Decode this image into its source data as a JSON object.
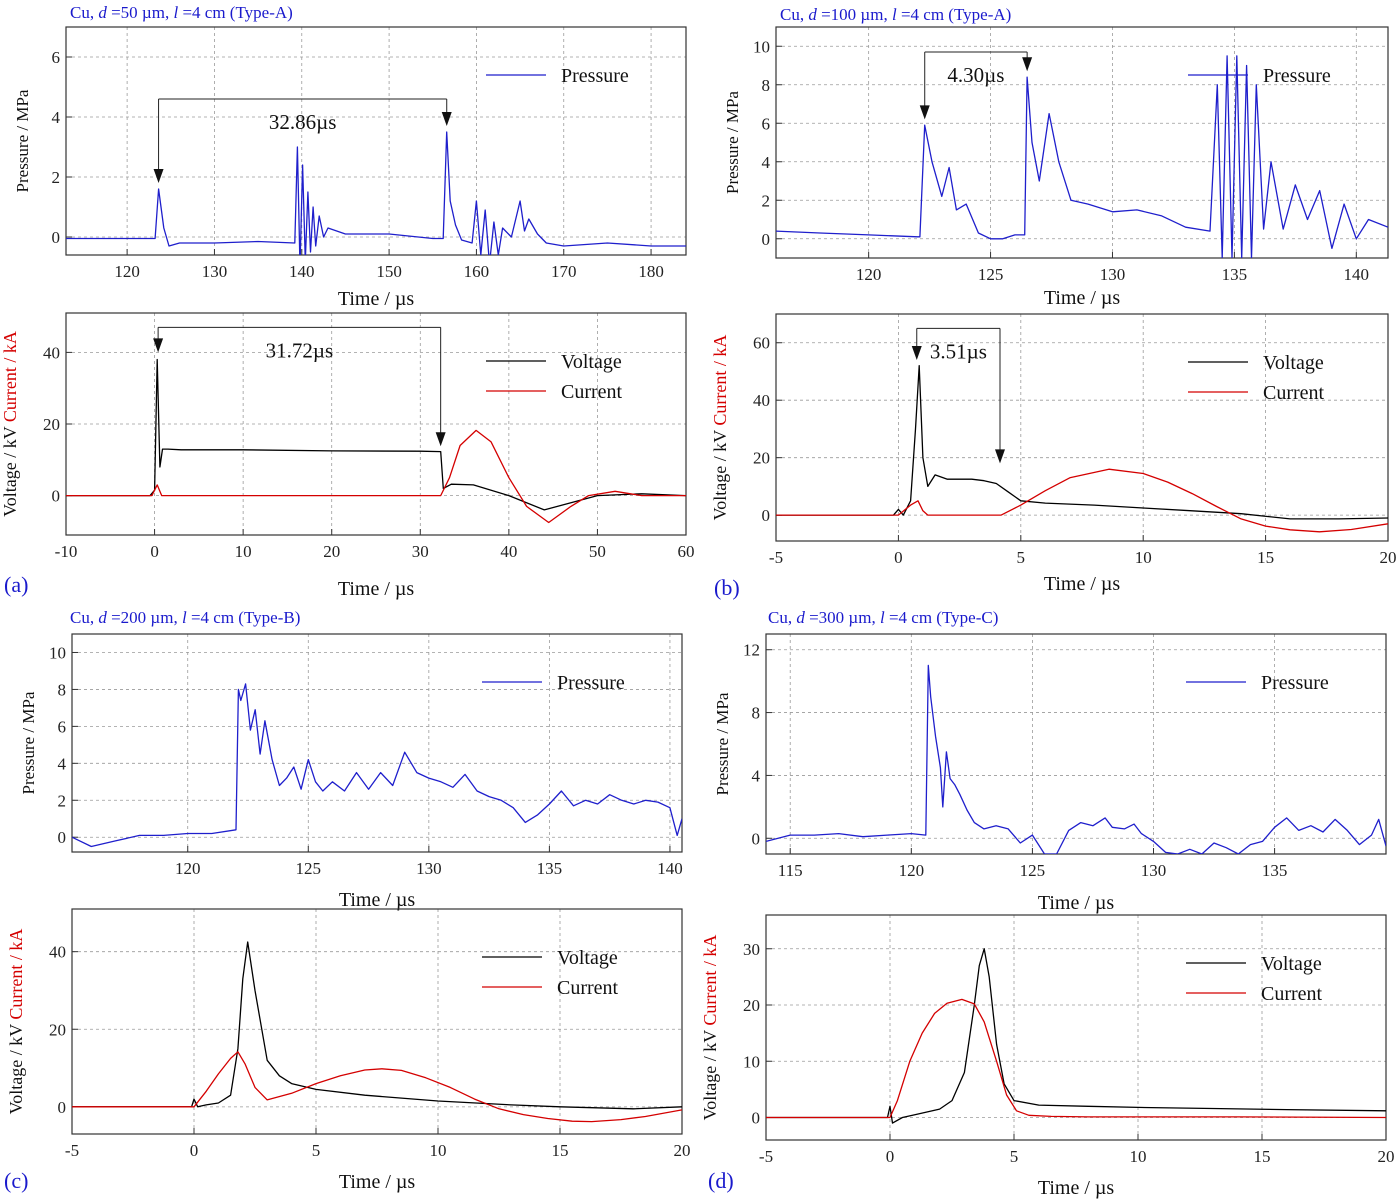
{
  "figure": {
    "colors": {
      "pressure": "#1f1fcc",
      "voltage": "#000000",
      "current": "#d40000",
      "title": "#1a1acc",
      "axis": "#333333",
      "grid": "#9a9a9a"
    },
    "panels": [
      {
        "letter": "(a)",
        "title_prefix": "Cu, ",
        "title_d": "d",
        "title_mid1": " =50 µm, ",
        "title_l": "l",
        "title_mid2": " =4 cm (Type-A)"
      },
      {
        "letter": "(b)",
        "title_prefix": "Cu, ",
        "title_d": "d",
        "title_mid1": " =100 µm, ",
        "title_l": "l",
        "title_mid2": " =4 cm (Type-A)"
      },
      {
        "letter": "(c)",
        "title_prefix": "Cu, ",
        "title_d": "d",
        "title_mid1": " =200 µm, ",
        "title_l": "l",
        "title_mid2": " =4 cm (Type-B)"
      },
      {
        "letter": "(d)",
        "title_prefix": "Cu, ",
        "title_d": "d",
        "title_mid1": " =300 µm, ",
        "title_l": "l",
        "title_mid2": " =4 cm (Type-C)"
      }
    ]
  },
  "chart_data": [
    {
      "id": "a-pressure",
      "type": "line",
      "xlabel": "Time  / µs",
      "ylabel": "Pressure / MPa",
      "xlim": [
        113,
        184
      ],
      "ylim": [
        -0.6,
        7.0
      ],
      "xticks": [
        120,
        130,
        140,
        150,
        160,
        170,
        180
      ],
      "yticks": [
        0,
        2,
        4,
        6
      ],
      "legend": "top-right",
      "series": [
        {
          "name": "Pressure",
          "color": "#1f1fcc",
          "x": [
            113,
            123.2,
            123.6,
            124.2,
            124.8,
            126,
            130,
            135,
            139.2,
            139.5,
            139.8,
            140.1,
            140.4,
            140.7,
            141,
            141.3,
            141.6,
            142,
            142.5,
            143,
            145,
            150,
            155,
            156.2,
            156.6,
            157,
            157.6,
            158.3,
            159.5,
            160,
            160.5,
            161,
            161.5,
            162,
            162.5,
            163,
            164,
            165,
            165.5,
            166,
            167,
            168,
            170,
            175,
            180,
            184
          ],
          "y": [
            -0.05,
            -0.05,
            1.6,
            0.3,
            -0.3,
            -0.2,
            -0.2,
            -0.15,
            -0.2,
            3.0,
            -1.0,
            2.4,
            -0.8,
            1.5,
            -0.5,
            1.0,
            -0.3,
            0.7,
            0.0,
            0.3,
            0.1,
            0.1,
            -0.05,
            -0.05,
            3.5,
            1.2,
            0.4,
            -0.1,
            -0.2,
            1.2,
            -0.6,
            0.9,
            -0.9,
            0.5,
            -0.6,
            0.3,
            0.0,
            1.2,
            0.2,
            0.6,
            0.1,
            -0.2,
            -0.3,
            -0.2,
            -0.3,
            -0.3
          ]
        }
      ],
      "annotation": {
        "label": "32.86µs",
        "x1": 123.6,
        "x2": 156.6,
        "y_bracket": 4.6,
        "y_tip1": 1.8,
        "y_tip2": 3.7
      }
    },
    {
      "id": "a-electrical",
      "type": "line",
      "xlabel": "Time  / µs",
      "ylabel_voltage": "Voltage / kV",
      "ylabel_current": "Current / kA",
      "xlim": [
        -10,
        60
      ],
      "ylim": [
        -11,
        51
      ],
      "xticks": [
        -10,
        0,
        10,
        20,
        30,
        40,
        50,
        60
      ],
      "yticks": [
        0,
        20,
        40
      ],
      "legend": "top-right",
      "series": [
        {
          "name": "Voltage",
          "color": "#000000",
          "x": [
            -10,
            -0.5,
            0,
            0.3,
            0.6,
            0.9,
            1.5,
            3,
            10,
            20,
            30,
            32.3,
            32.6,
            33.5,
            36,
            40,
            44,
            50,
            55,
            60
          ],
          "y": [
            0,
            0,
            1.5,
            38,
            8,
            13,
            13,
            12.8,
            12.8,
            12.5,
            12.4,
            12.3,
            2,
            3.2,
            3,
            0,
            -4,
            0,
            0.5,
            0
          ]
        },
        {
          "name": "Current",
          "color": "#d40000",
          "x": [
            -10,
            -0.3,
            0.3,
            0.8,
            1.5,
            32.3,
            33.3,
            34.5,
            36.3,
            38,
            40,
            42,
            44.5,
            47,
            49,
            52,
            55,
            60
          ],
          "y": [
            0,
            0,
            3,
            0,
            0,
            0,
            5,
            14,
            18.2,
            15,
            5,
            -3,
            -7.5,
            -3,
            0,
            1.2,
            0,
            0
          ]
        }
      ],
      "annotation": {
        "label": "31.72µs",
        "x1": 0.4,
        "x2": 32.3,
        "y_bracket": 47,
        "y_tip1": 40,
        "y_tip2": 13.8
      }
    },
    {
      "id": "b-pressure",
      "type": "line",
      "xlabel": "Time  / µs",
      "ylabel": "Pressure / MPa",
      "xlim": [
        116.2,
        141.3
      ],
      "ylim": [
        -1.0,
        11.0
      ],
      "xticks": [
        120,
        125,
        130,
        135,
        140
      ],
      "yticks": [
        0,
        2,
        4,
        6,
        8,
        10
      ],
      "legend": "top-right",
      "series": [
        {
          "name": "Pressure",
          "color": "#1f1fcc",
          "x": [
            116.2,
            118,
            120,
            122,
            122.1,
            122.3,
            122.6,
            123,
            123.3,
            123.6,
            124,
            124.5,
            125,
            125.5,
            126,
            126.4,
            126.5,
            126.7,
            127,
            127.4,
            127.8,
            128.3,
            129,
            130,
            131,
            132,
            133,
            134,
            134.3,
            134.5,
            134.7,
            134.9,
            135.1,
            135.3,
            135.5,
            135.7,
            135.9,
            136.2,
            136.5,
            137,
            137.5,
            138,
            138.5,
            139,
            139.5,
            140,
            140.5,
            141.3
          ],
          "y": [
            0.4,
            0.3,
            0.2,
            0.1,
            0.1,
            5.9,
            4.0,
            2.2,
            3.7,
            1.5,
            1.8,
            0.3,
            0.0,
            0.0,
            0.2,
            0.2,
            8.4,
            5.0,
            3.0,
            6.5,
            4.0,
            2.0,
            1.8,
            1.4,
            1.5,
            1.2,
            0.6,
            0.4,
            8.0,
            -1.0,
            9.5,
            -1.0,
            9.5,
            -1.0,
            9.0,
            -1.0,
            8.0,
            0.5,
            4.0,
            0.5,
            2.8,
            1.0,
            2.5,
            -0.5,
            1.8,
            0.0,
            1.0,
            0.6
          ]
        }
      ],
      "annotation": {
        "label": "4.30µs",
        "x1": 122.3,
        "x2": 126.5,
        "y_bracket": 9.7,
        "y_tip1": 6.2,
        "y_tip2": 8.7
      }
    },
    {
      "id": "b-electrical",
      "type": "line",
      "xlabel": "Time  / µs",
      "ylabel_voltage": "Voltage / kV",
      "ylabel_current": "Current / kA",
      "xlim": [
        -5,
        20
      ],
      "ylim": [
        -9,
        70
      ],
      "xticks": [
        -5,
        0,
        5,
        10,
        15,
        20
      ],
      "yticks": [
        0,
        20,
        40,
        60
      ],
      "legend": "top-right",
      "series": [
        {
          "name": "Voltage",
          "color": "#000000",
          "x": [
            -5,
            -0.2,
            0,
            0.2,
            0.5,
            0.7,
            0.85,
            1.0,
            1.2,
            1.5,
            2,
            3,
            3.5,
            4,
            4.5,
            5,
            6,
            8,
            10,
            12,
            14,
            16,
            18,
            20
          ],
          "y": [
            0,
            0,
            2,
            0,
            5,
            30,
            52,
            20,
            10,
            14,
            12.5,
            12.5,
            12,
            11,
            8,
            5,
            4.2,
            3.5,
            2.5,
            1.5,
            0.5,
            -1.3,
            -1.3,
            -1
          ]
        },
        {
          "name": "Current",
          "color": "#d40000",
          "x": [
            -5,
            0,
            0.5,
            0.8,
            1.0,
            1.2,
            4.2,
            5,
            6,
            7,
            8.6,
            10,
            11,
            12,
            13,
            14,
            15,
            16,
            17.2,
            18.5,
            20
          ],
          "y": [
            0,
            0,
            3.5,
            5,
            1.5,
            0,
            0,
            3.5,
            8.5,
            13,
            16,
            14.5,
            11.5,
            7.5,
            3,
            -1.3,
            -3.8,
            -5.1,
            -5.8,
            -5,
            -3
          ]
        }
      ],
      "annotation": {
        "label": "3.51µs",
        "x1": 0.75,
        "x2": 4.15,
        "y_bracket": 65,
        "y_tip1": 54,
        "y_tip2": 18
      }
    },
    {
      "id": "c-pressure",
      "type": "line",
      "xlabel": "Time  / µs",
      "ylabel": "Pressure / MPa",
      "xlim": [
        115.2,
        140.5
      ],
      "ylim": [
        -0.8,
        11.0
      ],
      "xticks": [
        120,
        125,
        130,
        135,
        140
      ],
      "yticks": [
        0,
        2,
        4,
        6,
        8,
        10
      ],
      "legend": "top-right",
      "series": [
        {
          "name": "Pressure",
          "color": "#1f1fcc",
          "x": [
            115.2,
            116,
            117,
            118,
            119,
            120,
            121,
            122,
            122.1,
            122.2,
            122.4,
            122.6,
            122.8,
            123,
            123.2,
            123.5,
            123.8,
            124.1,
            124.4,
            124.7,
            125,
            125.3,
            125.6,
            126,
            126.5,
            127,
            127.5,
            128,
            128.5,
            129,
            129.5,
            130,
            130.5,
            131,
            131.5,
            132,
            132.5,
            133,
            133.5,
            134,
            134.5,
            135,
            135.5,
            136,
            136.5,
            137,
            137.5,
            138,
            138.5,
            139,
            139.5,
            140,
            140.3,
            140.5
          ],
          "y": [
            0.0,
            -0.5,
            -0.2,
            0.1,
            0.1,
            0.2,
            0.2,
            0.4,
            8.0,
            7.4,
            8.3,
            5.8,
            6.9,
            4.5,
            6.3,
            4.2,
            2.8,
            3.2,
            3.8,
            2.6,
            4.2,
            3.0,
            2.5,
            3.0,
            2.5,
            3.5,
            2.6,
            3.5,
            2.8,
            4.6,
            3.5,
            3.2,
            3.0,
            2.7,
            3.4,
            2.5,
            2.2,
            2.0,
            1.6,
            0.8,
            1.2,
            1.8,
            2.5,
            1.7,
            2.0,
            1.8,
            2.3,
            2.0,
            1.8,
            2.0,
            1.9,
            1.6,
            0.1,
            1.0
          ]
        }
      ]
    },
    {
      "id": "c-electrical",
      "type": "line",
      "xlabel": "Time  / µs",
      "ylabel_voltage": "Voltage / kV",
      "ylabel_current": "Current / kA",
      "xlim": [
        -5,
        20
      ],
      "ylim": [
        -7,
        51
      ],
      "xticks": [
        -5,
        0,
        5,
        10,
        15,
        20
      ],
      "yticks": [
        0,
        20,
        40
      ],
      "legend": "top-right",
      "series": [
        {
          "name": "Voltage",
          "color": "#000000",
          "x": [
            -5,
            -0.1,
            0,
            0.15,
            0.5,
            1,
            1.5,
            1.8,
            2.0,
            2.2,
            2.5,
            3,
            3.5,
            4,
            5,
            7,
            10,
            13,
            15,
            18,
            20
          ],
          "y": [
            0,
            0,
            2,
            0,
            0.5,
            1,
            3,
            15,
            33,
            42.5,
            30,
            12,
            8,
            6,
            4.5,
            3,
            1.5,
            0.5,
            0,
            -0.5,
            0
          ]
        },
        {
          "name": "Current",
          "color": "#d40000",
          "x": [
            -5,
            0,
            0.5,
            1,
            1.5,
            1.8,
            2.1,
            2.5,
            3,
            4,
            5,
            6,
            7,
            7.7,
            8.5,
            9.5,
            10.5,
            11.5,
            12.5,
            13.5,
            14.5,
            15.5,
            16.3,
            17.5,
            18.5,
            20
          ],
          "y": [
            0,
            0,
            4,
            8.5,
            12.5,
            14.2,
            11,
            5,
            1.8,
            3.5,
            6,
            8,
            9.5,
            9.8,
            9.4,
            7.5,
            5,
            2,
            -0.5,
            -2,
            -3,
            -3.7,
            -3.8,
            -3.3,
            -2.5,
            -0.8
          ]
        }
      ]
    },
    {
      "id": "d-pressure",
      "type": "line",
      "xlabel": "Time  / µs",
      "ylabel": "Pressure / MPa",
      "xlim": [
        114,
        139.6
      ],
      "ylim": [
        -1.0,
        13.0
      ],
      "xticks": [
        115,
        120,
        125,
        130,
        135
      ],
      "yticks": [
        0,
        4,
        8,
        12
      ],
      "legend": "top-right",
      "series": [
        {
          "name": "Pressure",
          "color": "#1f1fcc",
          "x": [
            114,
            115,
            116,
            117,
            118,
            119,
            120,
            120.6,
            120.7,
            120.8,
            121,
            121.2,
            121.3,
            121.45,
            121.6,
            121.8,
            122,
            122.3,
            122.6,
            123,
            123.5,
            124,
            124.5,
            125,
            125.5,
            126,
            126.5,
            127,
            127.5,
            128,
            128.3,
            128.8,
            129.2,
            129.5,
            130,
            130.5,
            131,
            131.5,
            132,
            132.5,
            133,
            133.5,
            134,
            134.5,
            135,
            135.5,
            136,
            136.5,
            137,
            137.5,
            138,
            138.5,
            139,
            139.3,
            139.6
          ],
          "y": [
            -0.2,
            0.2,
            0.2,
            0.3,
            0.1,
            0.2,
            0.3,
            0.2,
            11.0,
            9.0,
            6.5,
            4.5,
            2.0,
            5.5,
            3.8,
            3.4,
            2.8,
            1.8,
            1.0,
            0.6,
            0.8,
            0.6,
            -0.3,
            0.2,
            -1.0,
            -1.0,
            0.5,
            1.0,
            0.8,
            1.3,
            0.7,
            0.6,
            0.9,
            0.3,
            -0.2,
            -0.9,
            -1.0,
            -0.7,
            -1.0,
            -0.3,
            -0.6,
            -1.0,
            -0.4,
            -0.2,
            0.7,
            1.3,
            0.5,
            0.8,
            0.4,
            1.2,
            0.5,
            -0.4,
            0.2,
            1.2,
            -0.5
          ]
        }
      ]
    },
    {
      "id": "d-electrical",
      "type": "line",
      "xlabel": "Time  / µs",
      "ylabel_voltage": "Voltage / kV",
      "ylabel_current": "Current / kA",
      "xlim": [
        -5,
        20
      ],
      "ylim": [
        -4,
        36
      ],
      "xticks": [
        -5,
        0,
        5,
        10,
        15,
        20
      ],
      "yticks": [
        0,
        10,
        20,
        30
      ],
      "legend": "top-right",
      "series": [
        {
          "name": "Voltage",
          "color": "#000000",
          "x": [
            -5,
            -0.1,
            0,
            0.1,
            0.5,
            1,
            2,
            2.5,
            3,
            3.4,
            3.6,
            3.8,
            4.0,
            4.3,
            4.6,
            5,
            6,
            8,
            10,
            13,
            16,
            20
          ],
          "y": [
            0,
            0,
            2,
            -1,
            0,
            0.5,
            1.5,
            3,
            8,
            20,
            27,
            30,
            25,
            13,
            6,
            3,
            2.2,
            2,
            1.8,
            1.6,
            1.4,
            1.2
          ]
        },
        {
          "name": "Current",
          "color": "#d40000",
          "x": [
            -5,
            0,
            0.3,
            0.8,
            1.3,
            1.8,
            2.3,
            2.9,
            3.4,
            3.8,
            4.3,
            4.7,
            5.1,
            5.6,
            6.5,
            8,
            10,
            14,
            20
          ],
          "y": [
            0,
            0,
            3,
            10,
            15,
            18.5,
            20.3,
            21,
            20.2,
            17,
            10,
            4,
            1.2,
            0.4,
            0.2,
            0.1,
            0.1,
            0.1,
            0
          ]
        }
      ]
    }
  ]
}
